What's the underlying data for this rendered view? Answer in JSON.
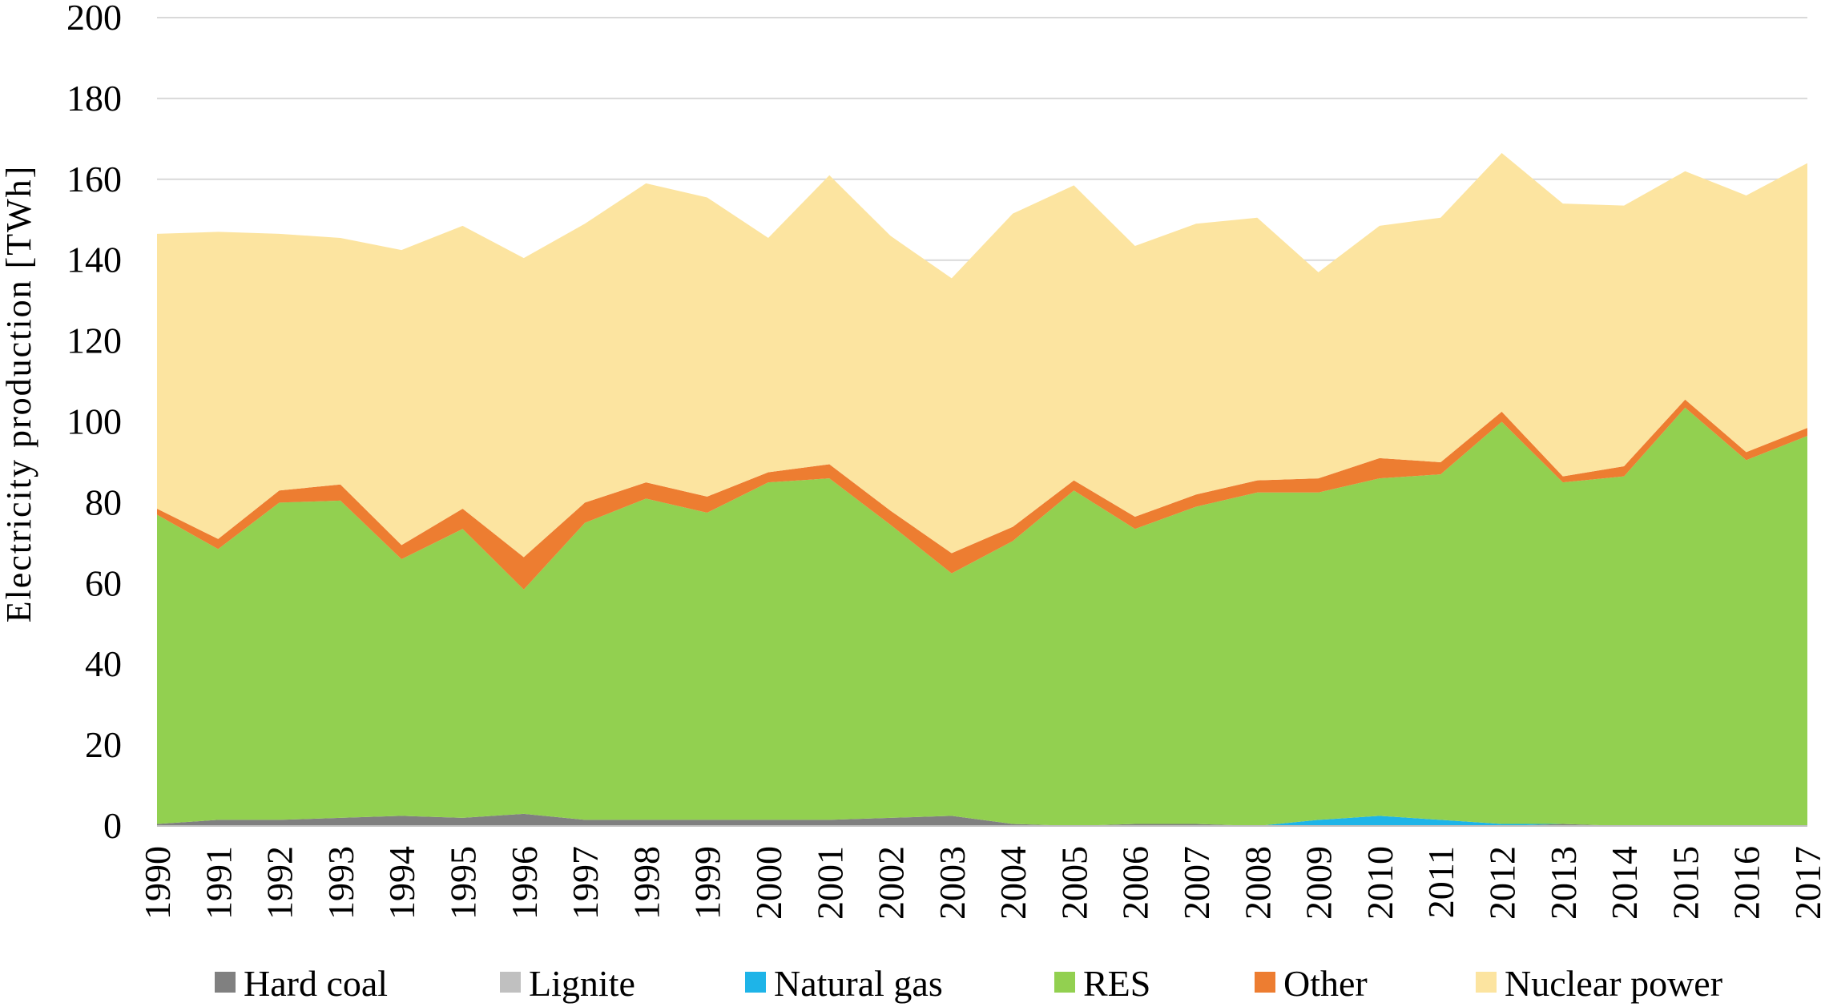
{
  "chart_data": {
    "type": "area",
    "stacked": true,
    "title": "",
    "xlabel": "",
    "ylabel": "Electricity  production  [TWh]",
    "ylim": [
      0,
      200
    ],
    "yticks": [
      0,
      20,
      40,
      60,
      80,
      100,
      120,
      140,
      160,
      180,
      200
    ],
    "grid": true,
    "legend_position": "bottom",
    "x": [
      "1990",
      "1991",
      "1992",
      "1993",
      "1994",
      "1995",
      "1996",
      "1997",
      "1998",
      "1999",
      "2000",
      "2001",
      "2002",
      "2003",
      "2004",
      "2005",
      "2006",
      "2007",
      "2008",
      "2009",
      "2010",
      "2011",
      "2012",
      "2013",
      "2014",
      "2015",
      "2016",
      "2017"
    ],
    "series": [
      {
        "name": "Hard coal",
        "color": "#808080",
        "values": [
          0.5,
          1.5,
          1.5,
          2,
          2.5,
          2,
          3,
          1.5,
          1.5,
          1.5,
          1.5,
          1.5,
          2,
          2.5,
          0.5,
          0,
          0.5,
          0.5,
          0,
          0,
          0,
          0,
          0,
          0.5,
          0,
          0,
          0,
          0
        ]
      },
      {
        "name": "Lignite",
        "color": "#c0c0c0",
        "values": [
          0,
          0,
          0,
          0,
          0,
          0,
          0,
          0,
          0,
          0,
          0,
          0,
          0,
          0,
          0,
          0,
          0,
          0,
          0,
          0,
          0,
          0,
          0,
          0,
          0,
          0,
          0,
          0
        ]
      },
      {
        "name": "Natural gas",
        "color": "#1eb4e8",
        "values": [
          0,
          0,
          0,
          0,
          0,
          0,
          0,
          0,
          0,
          0,
          0,
          0,
          0,
          0,
          0,
          0,
          0,
          0,
          0,
          1.5,
          2.5,
          1.5,
          0.5,
          0,
          0,
          0,
          0,
          0
        ]
      },
      {
        "name": "RES",
        "color": "#92d050",
        "values": [
          76.5,
          67,
          78.5,
          78.5,
          63.5,
          71.5,
          55.5,
          73.5,
          79.5,
          76,
          83.5,
          84.5,
          72.5,
          60,
          70,
          83,
          73,
          78.5,
          82.5,
          81,
          83.5,
          85.5,
          99.5,
          84.5,
          86.5,
          103.5,
          90.5,
          96.5
        ]
      },
      {
        "name": "Other",
        "color": "#ed7d31",
        "values": [
          1.5,
          2.5,
          3,
          4,
          3.5,
          5,
          8,
          5,
          4,
          4,
          2.5,
          3.5,
          3.5,
          5,
          3.5,
          2.5,
          3,
          3,
          3,
          3.5,
          5,
          3,
          2.5,
          1.5,
          2.5,
          2,
          2,
          2
        ]
      },
      {
        "name": "Nuclear power",
        "color": "#fce4a0",
        "values": [
          68,
          76,
          63.5,
          61,
          73,
          70,
          74,
          69,
          74,
          74,
          58,
          71.5,
          68,
          68,
          77.5,
          73,
          67,
          67,
          65,
          51,
          57.5,
          60.5,
          64,
          67.5,
          64.5,
          56.5,
          63.5,
          65.5
        ]
      }
    ]
  }
}
